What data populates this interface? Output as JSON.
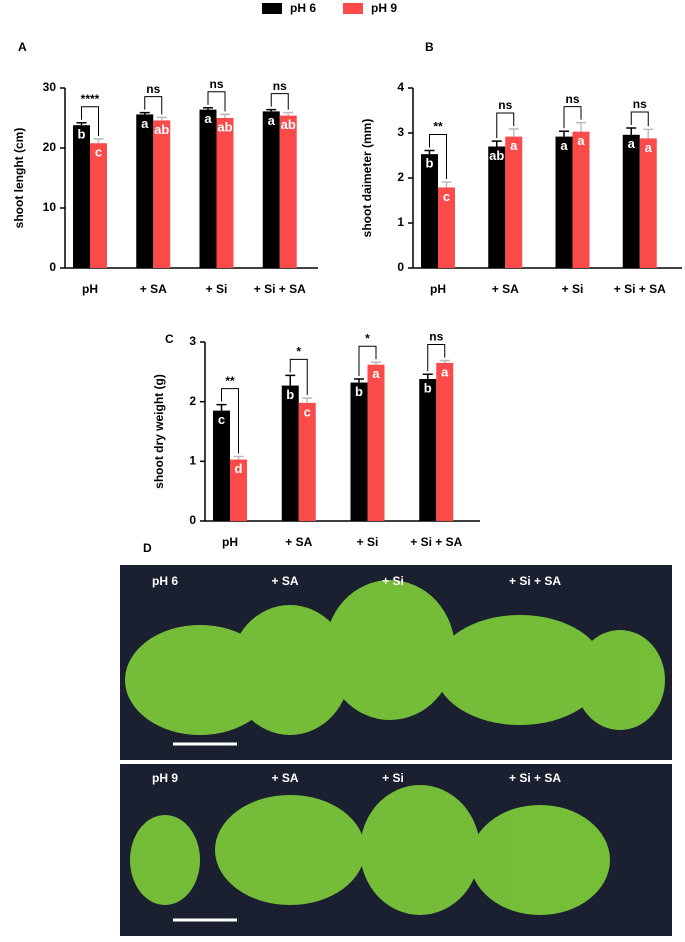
{
  "chart_data": [
    {
      "type": "bar",
      "panel": "A",
      "ylabel": "shoot lenght (cm)",
      "categories": [
        "pH",
        "+ SA",
        "+ Si",
        "+ Si + SA"
      ],
      "ylim": [
        0,
        30
      ],
      "yticks": [
        0,
        10,
        20,
        30
      ],
      "series": [
        {
          "name": "pH 6",
          "color": "#000000",
          "values": [
            23.8,
            25.6,
            26.4,
            26.1
          ],
          "errors": [
            0.4,
            0.3,
            0.3,
            0.3
          ],
          "letters": [
            "b",
            "a",
            "a",
            "a"
          ]
        },
        {
          "name": "pH 9",
          "color": "#fb4a4a",
          "values": [
            20.8,
            24.6,
            25.0,
            25.4
          ],
          "errors": [
            0.7,
            0.5,
            0.6,
            0.5
          ],
          "letters": [
            "c",
            "ab",
            "ab",
            "ab"
          ]
        }
      ],
      "significance": [
        "****",
        "ns",
        "ns",
        "ns"
      ]
    },
    {
      "type": "bar",
      "panel": "B",
      "ylabel": "shoot daimeter (mm)",
      "categories": [
        "pH",
        "+ SA",
        "+ Si",
        "+ Si + SA"
      ],
      "ylim": [
        0,
        4
      ],
      "yticks": [
        0,
        1,
        2,
        3,
        4
      ],
      "series": [
        {
          "name": "pH 6",
          "color": "#000000",
          "values": [
            2.53,
            2.7,
            2.92,
            2.96
          ],
          "errors": [
            0.08,
            0.12,
            0.12,
            0.15
          ],
          "letters": [
            "b",
            "ab",
            "a",
            "a"
          ]
        },
        {
          "name": "pH 9",
          "color": "#fb4a4a",
          "values": [
            1.79,
            2.92,
            3.03,
            2.88
          ],
          "errors": [
            0.12,
            0.17,
            0.2,
            0.2
          ],
          "letters": [
            "c",
            "a",
            "a",
            "a"
          ]
        }
      ],
      "significance": [
        "**",
        "ns",
        "ns",
        "ns"
      ]
    },
    {
      "type": "bar",
      "panel": "C",
      "ylabel": "shoot dry weight (g)",
      "categories": [
        "pH",
        "+ SA",
        "+ Si",
        "+ Si + SA"
      ],
      "ylim": [
        0,
        3
      ],
      "yticks": [
        0,
        1,
        2,
        3
      ],
      "series": [
        {
          "name": "pH 6",
          "color": "#000000",
          "values": [
            1.85,
            2.27,
            2.32,
            2.38
          ],
          "errors": [
            0.1,
            0.17,
            0.06,
            0.08
          ],
          "letters": [
            "c",
            "b",
            "b",
            "b"
          ]
        },
        {
          "name": "pH 9",
          "color": "#fb4a4a",
          "values": [
            1.03,
            1.98,
            2.62,
            2.65
          ],
          "errors": [
            0.05,
            0.08,
            0.04,
            0.04
          ],
          "letters": [
            "d",
            "c",
            "a",
            "a"
          ]
        }
      ],
      "significance": [
        "**",
        "*",
        "*",
        "ns"
      ]
    }
  ],
  "photo": {
    "panel": "D",
    "top_labels": [
      "pH 6",
      "+ SA",
      "+ Si",
      "+ Si + SA"
    ],
    "bottom_labels": [
      "pH 9",
      "+ SA",
      "+ Si",
      "+ Si + SA"
    ]
  }
}
